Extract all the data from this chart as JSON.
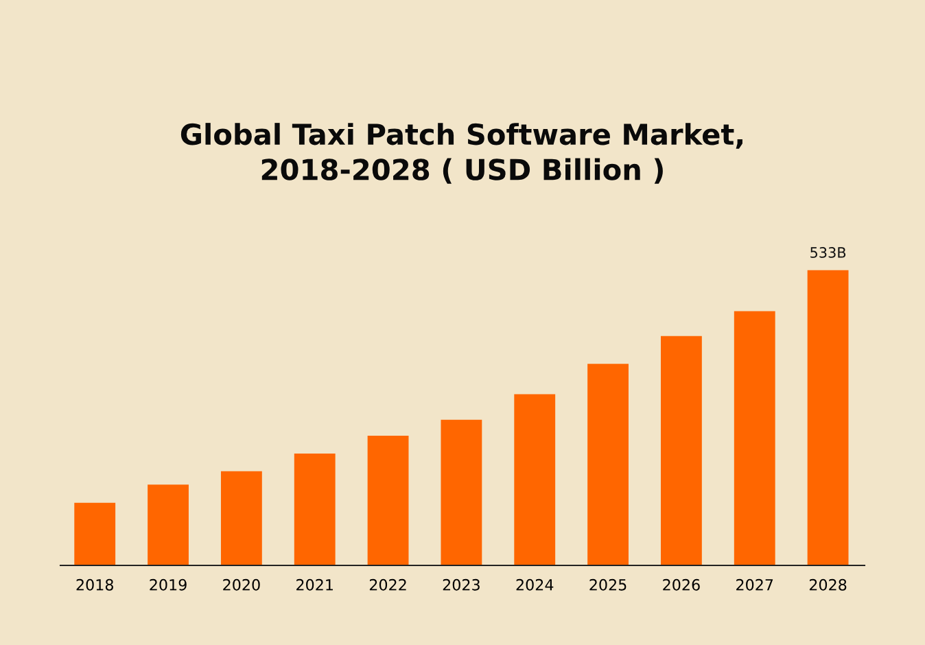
{
  "chart_data": {
    "type": "bar",
    "title": "Global Taxi Patch Software Market,\n2018-2028 ( USD Billion )",
    "categories": [
      "2018",
      "2019",
      "2020",
      "2021",
      "2022",
      "2023",
      "2024",
      "2025",
      "2026",
      "2027",
      "2028"
    ],
    "values": [
      113,
      146,
      170,
      202,
      234,
      263,
      309,
      364,
      414,
      459,
      533
    ],
    "value_labels": [
      null,
      null,
      null,
      null,
      null,
      null,
      null,
      null,
      null,
      null,
      "533B"
    ],
    "color": "#ff6600",
    "grid": false,
    "legend": false,
    "tick_labels": "x"
  }
}
